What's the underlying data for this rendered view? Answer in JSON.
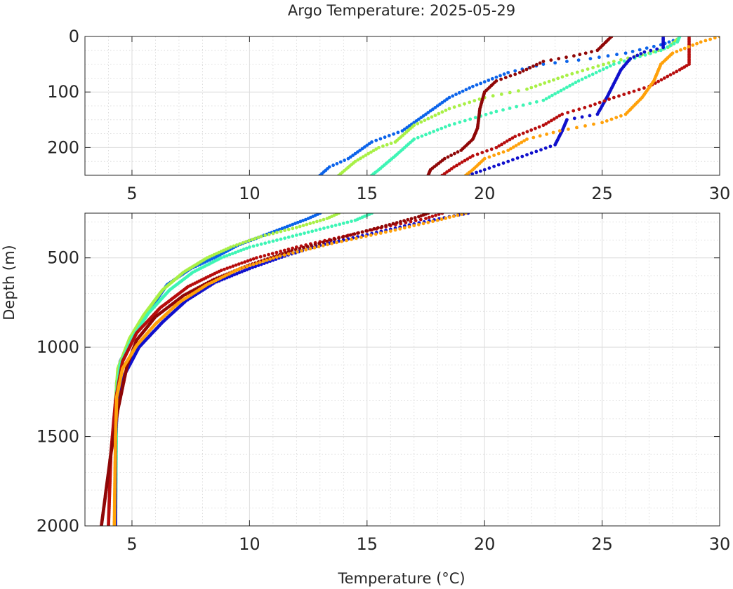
{
  "chart_data": {
    "type": "scatter",
    "title": "Argo Temperature: 2025-05-29",
    "xlabel": "Temperature (°C)",
    "ylabel": "Depth (m)",
    "grid": "on",
    "y_reversed": true,
    "panels": [
      {
        "name": "upper",
        "xlim": [
          3,
          30
        ],
        "ylim": [
          0,
          250
        ],
        "xticks": [
          5,
          10,
          15,
          20,
          25,
          30
        ],
        "yticks": [
          0,
          100,
          200
        ]
      },
      {
        "name": "lower",
        "xlim": [
          3,
          30
        ],
        "ylim": [
          250,
          2000
        ],
        "xticks": [
          5,
          10,
          15,
          20,
          25,
          30
        ],
        "yticks": [
          500,
          1000,
          1500,
          2000
        ]
      }
    ],
    "series": [
      {
        "color": "#0b63ea",
        "profile": [
          [
            28.2,
            5
          ],
          [
            27.5,
            15
          ],
          [
            26.0,
            30
          ],
          [
            24.5,
            40
          ],
          [
            22.5,
            50
          ],
          [
            21.0,
            65
          ],
          [
            19.5,
            90
          ],
          [
            18.5,
            110
          ],
          [
            17.5,
            140
          ],
          [
            16.5,
            170
          ],
          [
            15.2,
            190
          ],
          [
            14.2,
            220
          ],
          [
            13.4,
            235
          ],
          [
            13.0,
            250
          ],
          [
            12.5,
            280
          ],
          [
            11.5,
            330
          ],
          [
            10.5,
            380
          ],
          [
            9.5,
            430
          ],
          [
            8.5,
            500
          ],
          [
            7.5,
            560
          ],
          [
            6.5,
            650
          ],
          [
            5.7,
            800
          ],
          [
            5.0,
            950
          ],
          [
            4.5,
            1080
          ],
          [
            4.35,
            1200
          ],
          [
            4.3,
            1500
          ],
          [
            4.3,
            2000
          ]
        ]
      },
      {
        "color": "#a8f045",
        "profile": [
          [
            28.2,
            5
          ],
          [
            27.8,
            20
          ],
          [
            27.0,
            30
          ],
          [
            25.5,
            45
          ],
          [
            23.5,
            70
          ],
          [
            21.8,
            95
          ],
          [
            20.0,
            110
          ],
          [
            18.5,
            130
          ],
          [
            17.0,
            160
          ],
          [
            16.2,
            190
          ],
          [
            15.5,
            200
          ],
          [
            14.5,
            225
          ],
          [
            13.8,
            250
          ],
          [
            13.3,
            280
          ],
          [
            12.0,
            330
          ],
          [
            10.5,
            380
          ],
          [
            9.2,
            440
          ],
          [
            8.2,
            500
          ],
          [
            7.2,
            580
          ],
          [
            6.3,
            680
          ],
          [
            5.5,
            820
          ],
          [
            4.9,
            950
          ],
          [
            4.4,
            1120
          ],
          [
            4.3,
            1300
          ],
          [
            4.3,
            2000
          ]
        ]
      },
      {
        "color": "#3ef5b5",
        "profile": [
          [
            28.3,
            0
          ],
          [
            28.2,
            10
          ],
          [
            27.5,
            25
          ],
          [
            25.5,
            50
          ],
          [
            24.0,
            80
          ],
          [
            22.5,
            115
          ],
          [
            20.5,
            135
          ],
          [
            18.5,
            160
          ],
          [
            17.0,
            185
          ],
          [
            16.2,
            215
          ],
          [
            15.5,
            240
          ],
          [
            15.2,
            250
          ],
          [
            14.5,
            290
          ],
          [
            13.0,
            340
          ],
          [
            11.5,
            390
          ],
          [
            10.0,
            440
          ],
          [
            8.8,
            500
          ],
          [
            7.6,
            580
          ],
          [
            6.6,
            680
          ],
          [
            5.7,
            810
          ],
          [
            5.0,
            950
          ],
          [
            4.5,
            1100
          ],
          [
            4.35,
            1250
          ],
          [
            4.3,
            2000
          ]
        ]
      },
      {
        "color": "#1010cc",
        "profile": [
          [
            27.6,
            0
          ],
          [
            27.6,
            20
          ],
          [
            26.8,
            28
          ],
          [
            26.2,
            40
          ],
          [
            25.8,
            60
          ],
          [
            25.2,
            110
          ],
          [
            24.8,
            140
          ],
          [
            23.5,
            150
          ],
          [
            23.3,
            170
          ],
          [
            23.0,
            195
          ],
          [
            22.0,
            210
          ],
          [
            21.0,
            225
          ],
          [
            20.0,
            240
          ],
          [
            19.3,
            250
          ],
          [
            18.5,
            270
          ],
          [
            17.0,
            310
          ],
          [
            15.0,
            370
          ],
          [
            13.0,
            430
          ],
          [
            11.5,
            490
          ],
          [
            10.0,
            560
          ],
          [
            8.5,
            640
          ],
          [
            7.3,
            740
          ],
          [
            6.3,
            860
          ],
          [
            5.3,
            1000
          ],
          [
            4.7,
            1150
          ],
          [
            4.4,
            1300
          ],
          [
            4.3,
            1500
          ],
          [
            4.3,
            2000
          ]
        ]
      },
      {
        "color": "#b70d0d",
        "profile": [
          [
            28.7,
            0
          ],
          [
            28.7,
            50
          ],
          [
            28.3,
            60
          ],
          [
            27.0,
            90
          ],
          [
            25.5,
            110
          ],
          [
            24.5,
            125
          ],
          [
            23.3,
            140
          ],
          [
            22.5,
            160
          ],
          [
            21.3,
            180
          ],
          [
            20.5,
            200
          ],
          [
            19.5,
            215
          ],
          [
            18.7,
            235
          ],
          [
            18.2,
            250
          ],
          [
            17.5,
            280
          ],
          [
            16.0,
            320
          ],
          [
            14.0,
            380
          ],
          [
            12.0,
            440
          ],
          [
            10.3,
            500
          ],
          [
            8.8,
            570
          ],
          [
            7.4,
            660
          ],
          [
            6.2,
            780
          ],
          [
            5.2,
            920
          ],
          [
            4.6,
            1080
          ],
          [
            4.3,
            1300
          ],
          [
            4.1,
            1600
          ],
          [
            4.0,
            2000
          ]
        ]
      },
      {
        "color": "#8f0707",
        "profile": [
          [
            25.4,
            0
          ],
          [
            24.8,
            25
          ],
          [
            23.8,
            35
          ],
          [
            22.5,
            45
          ],
          [
            21.5,
            65
          ],
          [
            20.5,
            80
          ],
          [
            20.0,
            100
          ],
          [
            19.8,
            130
          ],
          [
            19.7,
            165
          ],
          [
            19.5,
            185
          ],
          [
            19.0,
            205
          ],
          [
            18.3,
            220
          ],
          [
            17.7,
            240
          ],
          [
            17.6,
            250
          ],
          [
            17.2,
            270
          ],
          [
            15.8,
            320
          ],
          [
            13.8,
            390
          ],
          [
            11.8,
            460
          ],
          [
            10.0,
            540
          ],
          [
            8.5,
            620
          ],
          [
            7.2,
            710
          ],
          [
            6.0,
            830
          ],
          [
            5.2,
            960
          ],
          [
            4.8,
            1100
          ],
          [
            4.4,
            1350
          ],
          [
            4.1,
            1600
          ],
          [
            3.9,
            1800
          ],
          [
            3.7,
            2000
          ]
        ]
      },
      {
        "color": "#ffa10a",
        "profile": [
          [
            30.0,
            0
          ],
          [
            29.2,
            10
          ],
          [
            28.0,
            30
          ],
          [
            27.5,
            50
          ],
          [
            27.2,
            80
          ],
          [
            26.7,
            110
          ],
          [
            26.0,
            140
          ],
          [
            25.0,
            155
          ],
          [
            23.2,
            170
          ],
          [
            21.8,
            185
          ],
          [
            21.0,
            205
          ],
          [
            20.0,
            220
          ],
          [
            19.5,
            240
          ],
          [
            19.2,
            250
          ],
          [
            18.0,
            290
          ],
          [
            16.0,
            350
          ],
          [
            13.5,
            420
          ],
          [
            11.3,
            490
          ],
          [
            9.6,
            560
          ],
          [
            8.2,
            650
          ],
          [
            7.0,
            750
          ],
          [
            6.0,
            870
          ],
          [
            5.2,
            990
          ],
          [
            4.6,
            1120
          ],
          [
            4.35,
            1280
          ],
          [
            4.3,
            1500
          ],
          [
            4.25,
            2000
          ]
        ]
      }
    ]
  }
}
